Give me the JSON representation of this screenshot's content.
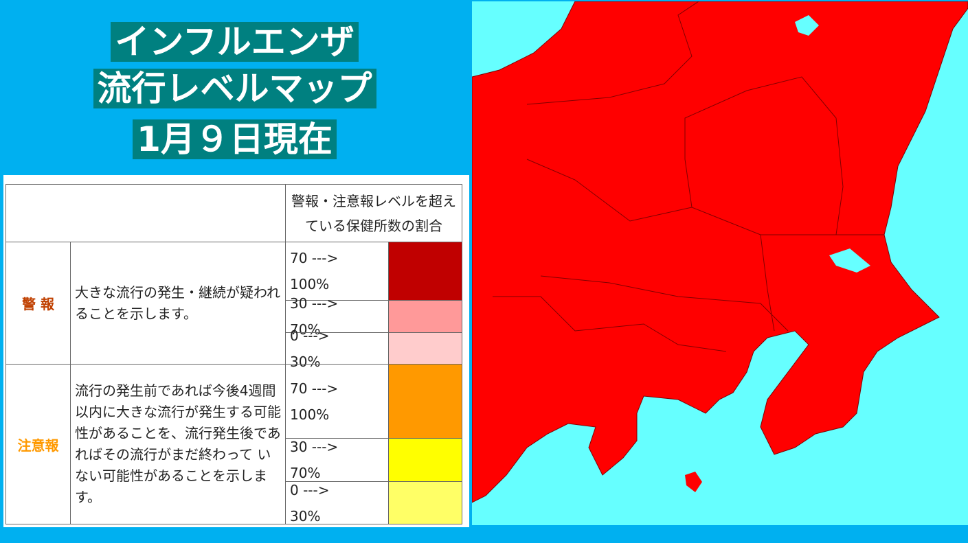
{
  "title": {
    "lines": [
      "インフルエンザ",
      "流行レベルマップ",
      "1月９日現在"
    ]
  },
  "table": {
    "header": "警報・注意報レベルを超えている保健所数の割合",
    "groups": [
      {
        "label": "警 報",
        "label_color": "#c04000",
        "description": "大きな流行の発生・継続が疑われることを示します。",
        "levels": [
          {
            "range": "70 ---> 100%",
            "color": "#c00000"
          },
          {
            "range": "30 ---> 70%",
            "color": "#ff9999"
          },
          {
            "range": "0 ---> 30%",
            "color": "#ffcccc"
          }
        ]
      },
      {
        "label": "注意報",
        "label_color": "#ff9900",
        "description": "流行の発生前であれば今後4週間以内に大きな流行が発生する可能性があることを、流行発生後であればその流行がまだ終わって いない可能性があることを示します。",
        "levels": [
          {
            "range": "70 ---> 100%",
            "color": "#ff9900"
          },
          {
            "range": "30 ---> 70%",
            "color": "#ffff00"
          },
          {
            "range": "0 ---> 30%",
            "color": "#ffff66"
          }
        ]
      }
    ]
  }
}
